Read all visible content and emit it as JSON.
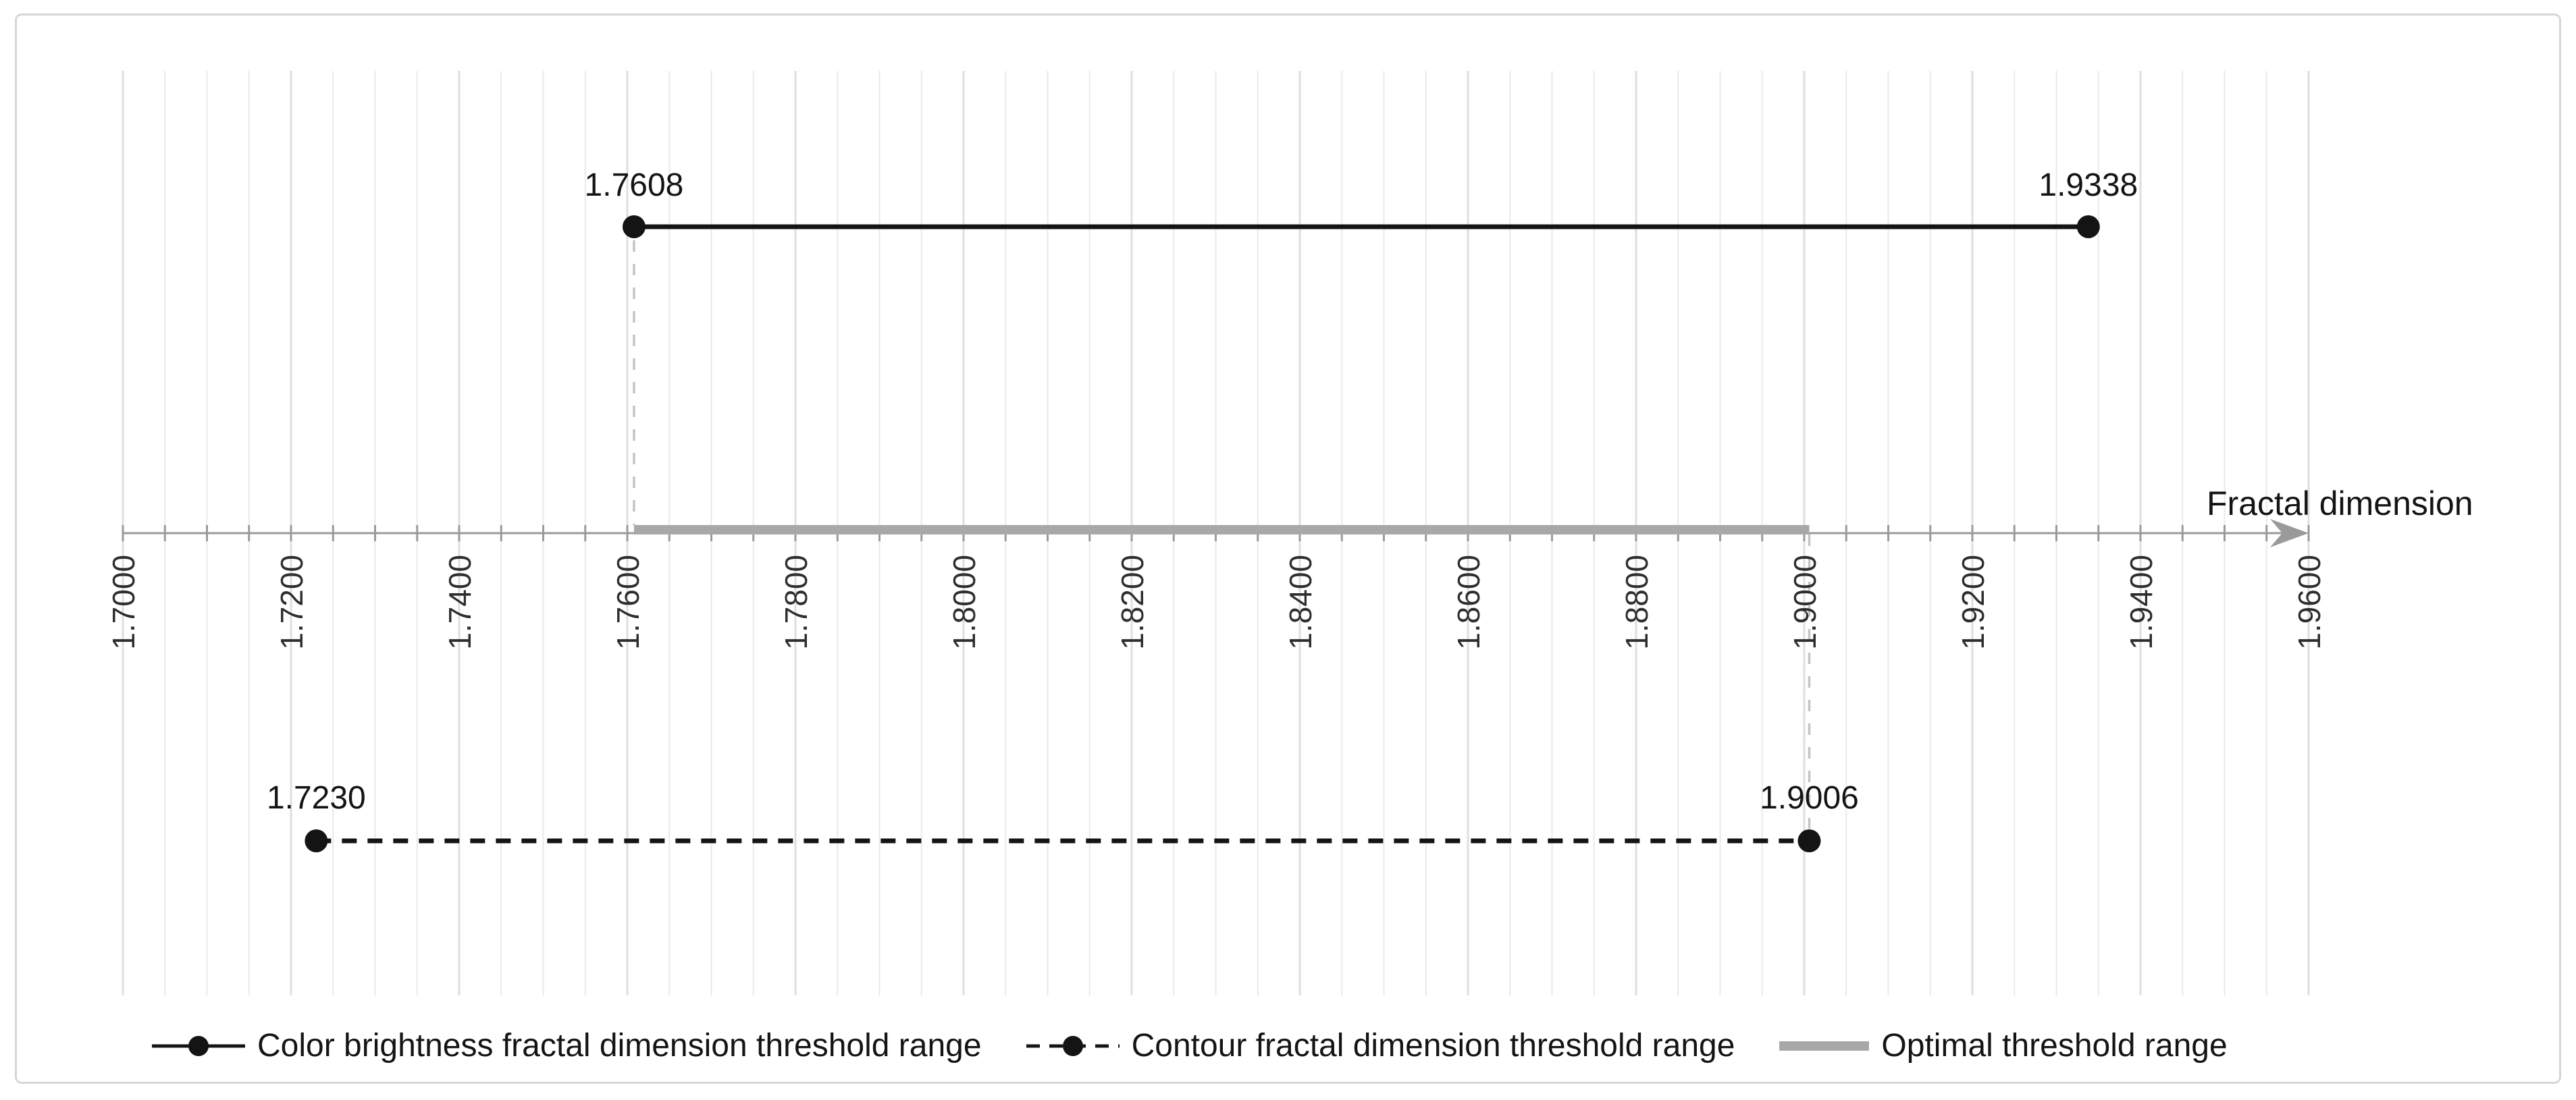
{
  "chart_data": {
    "type": "line",
    "title": "",
    "xlabel": "Fractal dimension",
    "x_axis": {
      "label": "Fractal dimension",
      "min": 1.7,
      "max": 1.96,
      "major_step": 0.02,
      "minor_step": 0.005,
      "ticks": [
        "1.7000",
        "1.7200",
        "1.7400",
        "1.7600",
        "1.7800",
        "1.8000",
        "1.8200",
        "1.8400",
        "1.8600",
        "1.8800",
        "1.9000",
        "1.9200",
        "1.9400",
        "1.9600"
      ]
    },
    "grid": "vertical, minor and major, light gray",
    "legend_position": "bottom",
    "series": [
      {
        "name": "Color brightness fractal dimension threshold range",
        "style": "solid-black-line-with-dots",
        "range": [
          1.7608,
          1.9338
        ],
        "labels": [
          "1.7608",
          "1.9338"
        ]
      },
      {
        "name": "Contour fractal dimension threshold range",
        "style": "dashed-black-line-with-dots",
        "range": [
          1.723,
          1.9006
        ],
        "labels": [
          "1.7230",
          "1.9006"
        ]
      },
      {
        "name": "Optimal threshold range",
        "style": "thick-gray-bar-on-axis",
        "range": [
          1.7608,
          1.9006
        ],
        "labels": []
      }
    ],
    "drop_lines": [
      {
        "value": 1.7608,
        "from": "color-brightness-left-point",
        "to": "axis"
      },
      {
        "value": 1.9006,
        "from": "axis",
        "to": "contour-right-point"
      }
    ]
  },
  "legend": {
    "items": [
      {
        "label": "Color brightness fractal dimension threshold range",
        "swatch": "solid-line-dot-marker"
      },
      {
        "label": "Contour fractal dimension threshold range",
        "swatch": "dashed-line-dot-marker"
      },
      {
        "label": "Optimal threshold range",
        "swatch": "thick-gray-line"
      }
    ]
  },
  "colors": {
    "series_black": "#141414",
    "axis_gray": "#9a9a9a",
    "optimal_bar_gray": "#a8a8a8",
    "connector_gray": "#c4c4c4",
    "grid_minor": "#eaeaea",
    "grid_major": "#dfdfdf",
    "frame_border": "#d6d6d6",
    "background": "#ffffff"
  }
}
